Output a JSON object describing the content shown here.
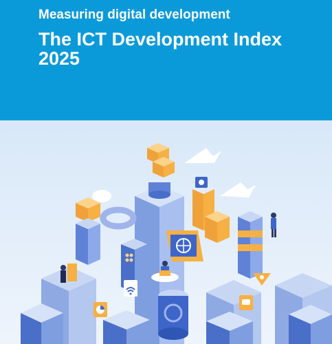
{
  "cover": {
    "subtitle": "Measuring digital development",
    "title": "The ICT Development Index 2025"
  },
  "colors": {
    "header_background": "#0a9ad9",
    "header_text": "#ffffff",
    "illustration_sky": "#dbe9f8",
    "accent_orange": "#f6b043",
    "accent_blue": "#3e66c9"
  },
  "illustration": {
    "description_icons": [
      "server-stack-icon",
      "globe-icon",
      "wifi-icon",
      "gear-icon",
      "chat-bubble-icon",
      "chart-icon",
      "cloud-icon",
      "person-icon",
      "laptop-icon"
    ]
  }
}
